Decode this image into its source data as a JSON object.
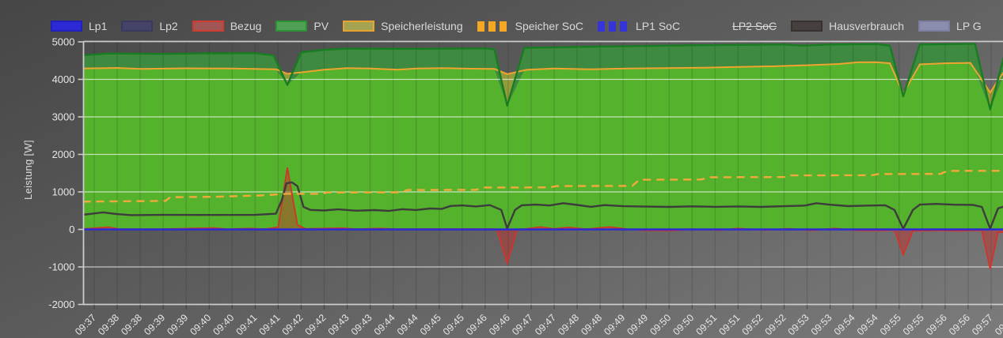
{
  "legend": {
    "items": [
      {
        "id": "lp1",
        "label": "Lp1",
        "style": "solid",
        "fill": "#2b2ad4",
        "border": "#2220bb",
        "strikethrough": false
      },
      {
        "id": "lp2",
        "label": "Lp2",
        "style": "solid",
        "fill": "#454368",
        "border": "#3a3960",
        "strikethrough": false
      },
      {
        "id": "bezug",
        "label": "Bezug",
        "style": "solid",
        "fill": "#a15555",
        "border": "#cf3b2f",
        "strikethrough": false
      },
      {
        "id": "pv",
        "label": "PV",
        "style": "solid",
        "fill": "#4f9f55",
        "border": "#2e9035",
        "strikethrough": false
      },
      {
        "id": "speicherleistung",
        "label": "Speicherleistung",
        "style": "solid",
        "fill": "#a3a352",
        "border": "#e8a42e",
        "strikethrough": false
      },
      {
        "id": "speicher-soc",
        "label": "Speicher SoC",
        "style": "dashed",
        "fill": "#f5a623",
        "border": "#f5a623",
        "strikethrough": false
      },
      {
        "id": "lp1-soc",
        "label": "LP1 SoC",
        "style": "dashed",
        "fill": "#3534d8",
        "border": "#3534d8",
        "strikethrough": false
      },
      {
        "id": "lp2-soc",
        "label": "LP2 SoC",
        "style": "dashed",
        "fill": "#5c5c5c",
        "border": "#5c5c5c",
        "strikethrough": true
      },
      {
        "id": "hausverbrauch",
        "label": "Hausverbrauch",
        "style": "solid",
        "fill": "#46403f",
        "border": "#37312f",
        "strikethrough": false
      },
      {
        "id": "lp-gesamt",
        "label": "LP G",
        "style": "solid",
        "fill": "#8a8dac",
        "border": "#7b7ea0",
        "strikethrough": false
      }
    ]
  },
  "axes": {
    "y_label": "Leistung [W]",
    "y_unit": "W",
    "y_min": -2000,
    "y_max": 5000,
    "y_ticks": [
      5000,
      4000,
      3000,
      2000,
      1000,
      0,
      -1000,
      -2000
    ],
    "x_tick_interval_seconds": 30,
    "x_labels": [
      "09:37",
      "09:38",
      "09:38",
      "09:39",
      "09:39",
      "09:40",
      "09:40",
      "09:41",
      "09:41",
      "09:42",
      "09:42",
      "09:43",
      "09:43",
      "09:44",
      "09:44",
      "09:45",
      "09:45",
      "09:46",
      "09:46",
      "09:47",
      "09:47",
      "09:48",
      "09:48",
      "09:49",
      "09:49",
      "09:50",
      "09:50",
      "09:51",
      "09:51",
      "09:52",
      "09:52",
      "09:53",
      "09:53",
      "09:54",
      "09:54",
      "09:55",
      "09:55",
      "09:56",
      "09:56",
      "09:57",
      "09:57"
    ]
  },
  "chart_data": {
    "type": "area",
    "title": "",
    "xlabel": "",
    "ylabel": "Leistung [W]",
    "ylim": [
      -2000,
      5000
    ],
    "x_unit": "minutes after 09:37:30",
    "grid": true,
    "legend_position": "top",
    "soc_axis_scale_watts_per_percent": 50,
    "series": [
      {
        "name": "PV",
        "kind": "area-line",
        "unit": "W",
        "stroke": "#187d20",
        "fill": "#3e8a41",
        "points": [
          [
            -0.25,
            4640
          ],
          [
            0.3,
            4690
          ],
          [
            1.5,
            4680
          ],
          [
            2.5,
            4695
          ],
          [
            3.5,
            4700
          ],
          [
            3.9,
            4640
          ],
          [
            4.2,
            3850
          ],
          [
            4.5,
            4720
          ],
          [
            5,
            4790
          ],
          [
            5.5,
            4820
          ],
          [
            7,
            4815
          ],
          [
            8.5,
            4825
          ],
          [
            8.7,
            4800
          ],
          [
            8.98,
            3300
          ],
          [
            9.35,
            4840
          ],
          [
            10,
            4855
          ],
          [
            11,
            4875
          ],
          [
            12,
            4890
          ],
          [
            13,
            4910
          ],
          [
            14,
            4920
          ],
          [
            15,
            4930
          ],
          [
            15.4,
            4900
          ],
          [
            16,
            4930
          ],
          [
            17,
            4940
          ],
          [
            17.3,
            4900
          ],
          [
            17.59,
            3550
          ],
          [
            17.95,
            4930
          ],
          [
            18.7,
            4940
          ],
          [
            19.15,
            4950
          ],
          [
            19.48,
            3200
          ],
          [
            19.85,
            4940
          ],
          [
            20.3,
            4960
          ],
          [
            20.5,
            4990
          ]
        ]
      },
      {
        "name": "Speicherleistung",
        "kind": "area-line",
        "unit": "W",
        "stroke": "#efa42f",
        "fill": "#939b3b",
        "overlap_fill_with_pv": "#55b22c",
        "points": [
          [
            -0.25,
            4290
          ],
          [
            0.5,
            4305
          ],
          [
            1,
            4280
          ],
          [
            2,
            4295
          ],
          [
            3,
            4290
          ],
          [
            3.95,
            4270
          ],
          [
            4.2,
            4150
          ],
          [
            4.6,
            4200
          ],
          [
            5,
            4260
          ],
          [
            5.5,
            4300
          ],
          [
            6,
            4290
          ],
          [
            6.6,
            4260
          ],
          [
            7,
            4290
          ],
          [
            7.6,
            4300
          ],
          [
            8.2,
            4285
          ],
          [
            8.7,
            4280
          ],
          [
            8.98,
            4140
          ],
          [
            9.4,
            4255
          ],
          [
            10,
            4290
          ],
          [
            10.8,
            4270
          ],
          [
            11.6,
            4290
          ],
          [
            12.4,
            4300
          ],
          [
            13.2,
            4310
          ],
          [
            14,
            4330
          ],
          [
            14.8,
            4350
          ],
          [
            15.6,
            4380
          ],
          [
            16.2,
            4410
          ],
          [
            16.6,
            4455
          ],
          [
            17,
            4460
          ],
          [
            17.3,
            4430
          ],
          [
            17.59,
            3620
          ],
          [
            17.95,
            4400
          ],
          [
            18.5,
            4430
          ],
          [
            19.05,
            4440
          ],
          [
            19.48,
            3650
          ],
          [
            19.9,
            4430
          ],
          [
            20.2,
            4500
          ],
          [
            20.5,
            4570
          ]
        ]
      },
      {
        "name": "Bezug",
        "kind": "area-line",
        "unit": "W",
        "stroke": "#d0342b",
        "fill": "rgba(200,45,40,0.45)",
        "points": [
          [
            -0.25,
            10
          ],
          [
            0.3,
            60
          ],
          [
            0.55,
            10
          ],
          [
            1.5,
            8
          ],
          [
            2.6,
            40
          ],
          [
            2.9,
            8
          ],
          [
            3.4,
            25
          ],
          [
            3.7,
            8
          ],
          [
            4.0,
            60
          ],
          [
            4.2,
            1650
          ],
          [
            4.42,
            120
          ],
          [
            4.6,
            15
          ],
          [
            5.4,
            35
          ],
          [
            5.7,
            8
          ],
          [
            6.2,
            25
          ],
          [
            6.6,
            8
          ],
          [
            7.5,
            10
          ],
          [
            8.6,
            10
          ],
          [
            8.75,
            5
          ],
          [
            8.98,
            -900
          ],
          [
            9.2,
            5
          ],
          [
            9.35,
            8
          ],
          [
            9.7,
            65
          ],
          [
            10,
            15
          ],
          [
            10.3,
            55
          ],
          [
            10.7,
            8
          ],
          [
            11.2,
            65
          ],
          [
            11.6,
            8
          ],
          [
            12,
            -25
          ],
          [
            12.6,
            -30
          ],
          [
            13,
            8
          ],
          [
            13.6,
            -20
          ],
          [
            14,
            25
          ],
          [
            14.6,
            -20
          ],
          [
            15.1,
            20
          ],
          [
            15.6,
            -25
          ],
          [
            16.1,
            25
          ],
          [
            16.6,
            -25
          ],
          [
            17.1,
            -30
          ],
          [
            17.4,
            -20
          ],
          [
            17.59,
            -670
          ],
          [
            17.8,
            -40
          ],
          [
            18.4,
            -25
          ],
          [
            18.8,
            -40
          ],
          [
            19.2,
            -25
          ],
          [
            19.3,
            -30
          ],
          [
            19.48,
            -1050
          ],
          [
            19.65,
            -80
          ],
          [
            19.8,
            -70
          ],
          [
            20.1,
            -45
          ],
          [
            20.5,
            -30
          ]
        ]
      },
      {
        "name": "Hausverbrauch",
        "kind": "line",
        "unit": "W",
        "stroke": "#3d3c3c",
        "points": [
          [
            -0.25,
            390
          ],
          [
            0.2,
            455
          ],
          [
            0.45,
            415
          ],
          [
            0.8,
            380
          ],
          [
            1.5,
            388
          ],
          [
            2.5,
            385
          ],
          [
            3.5,
            388
          ],
          [
            3.95,
            420
          ],
          [
            4.08,
            780
          ],
          [
            4.18,
            1230
          ],
          [
            4.3,
            1255
          ],
          [
            4.42,
            1150
          ],
          [
            4.55,
            600
          ],
          [
            4.7,
            520
          ],
          [
            5,
            505
          ],
          [
            5.3,
            535
          ],
          [
            5.7,
            498
          ],
          [
            6.1,
            515
          ],
          [
            6.4,
            492
          ],
          [
            6.7,
            540
          ],
          [
            7,
            518
          ],
          [
            7.3,
            558
          ],
          [
            7.55,
            545
          ],
          [
            7.75,
            625
          ],
          [
            8,
            640
          ],
          [
            8.3,
            612
          ],
          [
            8.6,
            648
          ],
          [
            8.85,
            520
          ],
          [
            8.98,
            25
          ],
          [
            9.15,
            520
          ],
          [
            9.3,
            645
          ],
          [
            9.6,
            660
          ],
          [
            9.9,
            638
          ],
          [
            10.2,
            700
          ],
          [
            10.5,
            652
          ],
          [
            10.8,
            602
          ],
          [
            11.1,
            648
          ],
          [
            11.5,
            618
          ],
          [
            12,
            608
          ],
          [
            12.5,
            600
          ],
          [
            13,
            615
          ],
          [
            13.5,
            602
          ],
          [
            14,
            612
          ],
          [
            14.5,
            600
          ],
          [
            15,
            618
          ],
          [
            15.45,
            635
          ],
          [
            15.7,
            700
          ],
          [
            16,
            658
          ],
          [
            16.4,
            622
          ],
          [
            16.8,
            635
          ],
          [
            17.2,
            645
          ],
          [
            17.4,
            520
          ],
          [
            17.59,
            20
          ],
          [
            17.8,
            520
          ],
          [
            17.95,
            660
          ],
          [
            18.3,
            680
          ],
          [
            18.7,
            658
          ],
          [
            19.1,
            655
          ],
          [
            19.3,
            600
          ],
          [
            19.48,
            20
          ],
          [
            19.65,
            560
          ],
          [
            19.85,
            640
          ],
          [
            20.15,
            600
          ],
          [
            20.35,
            560
          ],
          [
            20.5,
            585
          ]
        ]
      },
      {
        "name": "Speicher SoC",
        "kind": "dashed-line",
        "unit": "%",
        "stroke": "#f2a93b",
        "points": [
          [
            -0.25,
            14.8
          ],
          [
            1.55,
            15.2
          ],
          [
            1.65,
            17.2
          ],
          [
            2.6,
            17.4
          ],
          [
            3.6,
            18.1
          ],
          [
            4.2,
            19.0
          ],
          [
            4.95,
            19.0
          ],
          [
            5.05,
            19.7
          ],
          [
            6.7,
            19.8
          ],
          [
            6.8,
            21.0
          ],
          [
            8.3,
            21.1
          ],
          [
            8.45,
            22.3
          ],
          [
            9.9,
            22.4
          ],
          [
            10.05,
            23.1
          ],
          [
            11.7,
            23.2
          ],
          [
            11.85,
            26.5
          ],
          [
            13.2,
            26.6
          ],
          [
            13.35,
            27.8
          ],
          [
            15,
            27.9
          ],
          [
            15.15,
            28.8
          ],
          [
            16.9,
            28.9
          ],
          [
            17.05,
            29.5
          ],
          [
            18.4,
            29.6
          ],
          [
            18.55,
            31.2
          ],
          [
            20.5,
            31.3
          ]
        ]
      },
      {
        "name": "Lp1",
        "kind": "line",
        "unit": "W",
        "stroke": "#2b2ad4",
        "points": [
          [
            -0.25,
            0
          ],
          [
            20.5,
            0
          ]
        ]
      },
      {
        "name": "Lp2",
        "kind": "line",
        "unit": "W",
        "stroke": "#454368",
        "points": [
          [
            -0.25,
            0
          ],
          [
            20.5,
            0
          ]
        ]
      },
      {
        "name": "LP1 SoC",
        "kind": "dashed-line",
        "unit": "%",
        "stroke": "#3534d8",
        "points": [
          [
            -0.25,
            0
          ],
          [
            20.5,
            0
          ]
        ]
      },
      {
        "name": "LP2 SoC",
        "kind": "dashed-line",
        "unit": "%",
        "stroke": "#5c5c5c",
        "visible": false,
        "points": []
      }
    ]
  },
  "style": {
    "bright_overlap_green": "#55b22c",
    "pv_band_green": "#3e8a41",
    "speicher_only_olive": "#939b3b",
    "grid_h_color": "rgba(255,255,255,0.65)",
    "grid_v_color": "rgba(30,30,30,0.16)",
    "axis_color": "#cccccc",
    "tick_text_color": "#e6e6e6"
  }
}
